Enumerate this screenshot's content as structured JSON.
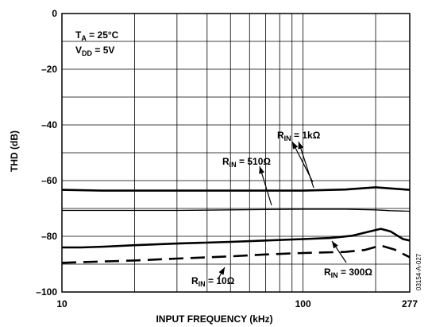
{
  "chart_data": {
    "type": "line",
    "title": "",
    "xlabel": "INPUT FREQUENCY (kHz)",
    "ylabel": "THD (dB)",
    "xscale": "log",
    "xlim": [
      10,
      277
    ],
    "ylim": [
      -100,
      0
    ],
    "x_ticks": [
      "10",
      "100",
      "277"
    ],
    "y_ticks": [
      "0",
      "–20",
      "–40",
      "–60",
      "–80",
      "–100"
    ],
    "grid": true,
    "conditions": [
      {
        "main": "T",
        "sub": "A",
        "rest": " = 25°C"
      },
      {
        "main": "V",
        "sub": "DD",
        "rest": " = 5V"
      }
    ],
    "series": [
      {
        "name": "R_IN = 1kΩ",
        "style": "thick-solid",
        "x": [
          10,
          15,
          20,
          30,
          50,
          70,
          100,
          150,
          200,
          230,
          277
        ],
        "y": [
          -63.3,
          -63.6,
          -63.6,
          -63.6,
          -63.6,
          -63.6,
          -63.6,
          -63.2,
          -62.4,
          -62.8,
          -63.3
        ]
      },
      {
        "name": "R_IN = 510Ω",
        "style": "thin-solid",
        "x": [
          10,
          20,
          30,
          50,
          70,
          100,
          150,
          200,
          230,
          277
        ],
        "y": [
          -70.7,
          -70.7,
          -70.7,
          -70.5,
          -70.4,
          -70.3,
          -70.3,
          -70.5,
          -70.8,
          -71.0
        ]
      },
      {
        "name": "R_IN = 300Ω",
        "style": "thick-solid",
        "x": [
          10,
          12,
          15,
          20,
          30,
          50,
          70,
          100,
          130,
          160,
          190,
          210,
          230,
          260,
          277
        ],
        "y": [
          -84.0,
          -84.0,
          -83.7,
          -83.2,
          -82.6,
          -82.0,
          -81.5,
          -81.0,
          -80.6,
          -79.8,
          -78.2,
          -77.3,
          -78.2,
          -81.0,
          -81.5
        ]
      },
      {
        "name": "R_IN = 10Ω",
        "style": "dashed",
        "x": [
          10,
          20,
          30,
          50,
          70,
          100,
          150,
          180,
          210,
          240,
          277
        ],
        "y": [
          -89.5,
          -88.7,
          -88.0,
          -87.2,
          -86.5,
          -86.0,
          -85.6,
          -84.9,
          -83.3,
          -84.8,
          -87.5
        ]
      }
    ],
    "annotations": [
      {
        "main": "R",
        "sub": "IN",
        "rest": " = 1kΩ"
      },
      {
        "main": "R",
        "sub": "IN",
        "rest": " = 510Ω"
      },
      {
        "main": "R",
        "sub": "IN",
        "rest": " = 10Ω"
      },
      {
        "main": "R",
        "sub": "IN",
        "rest": " = 300Ω"
      }
    ],
    "figure_code": "03154-A-027"
  }
}
